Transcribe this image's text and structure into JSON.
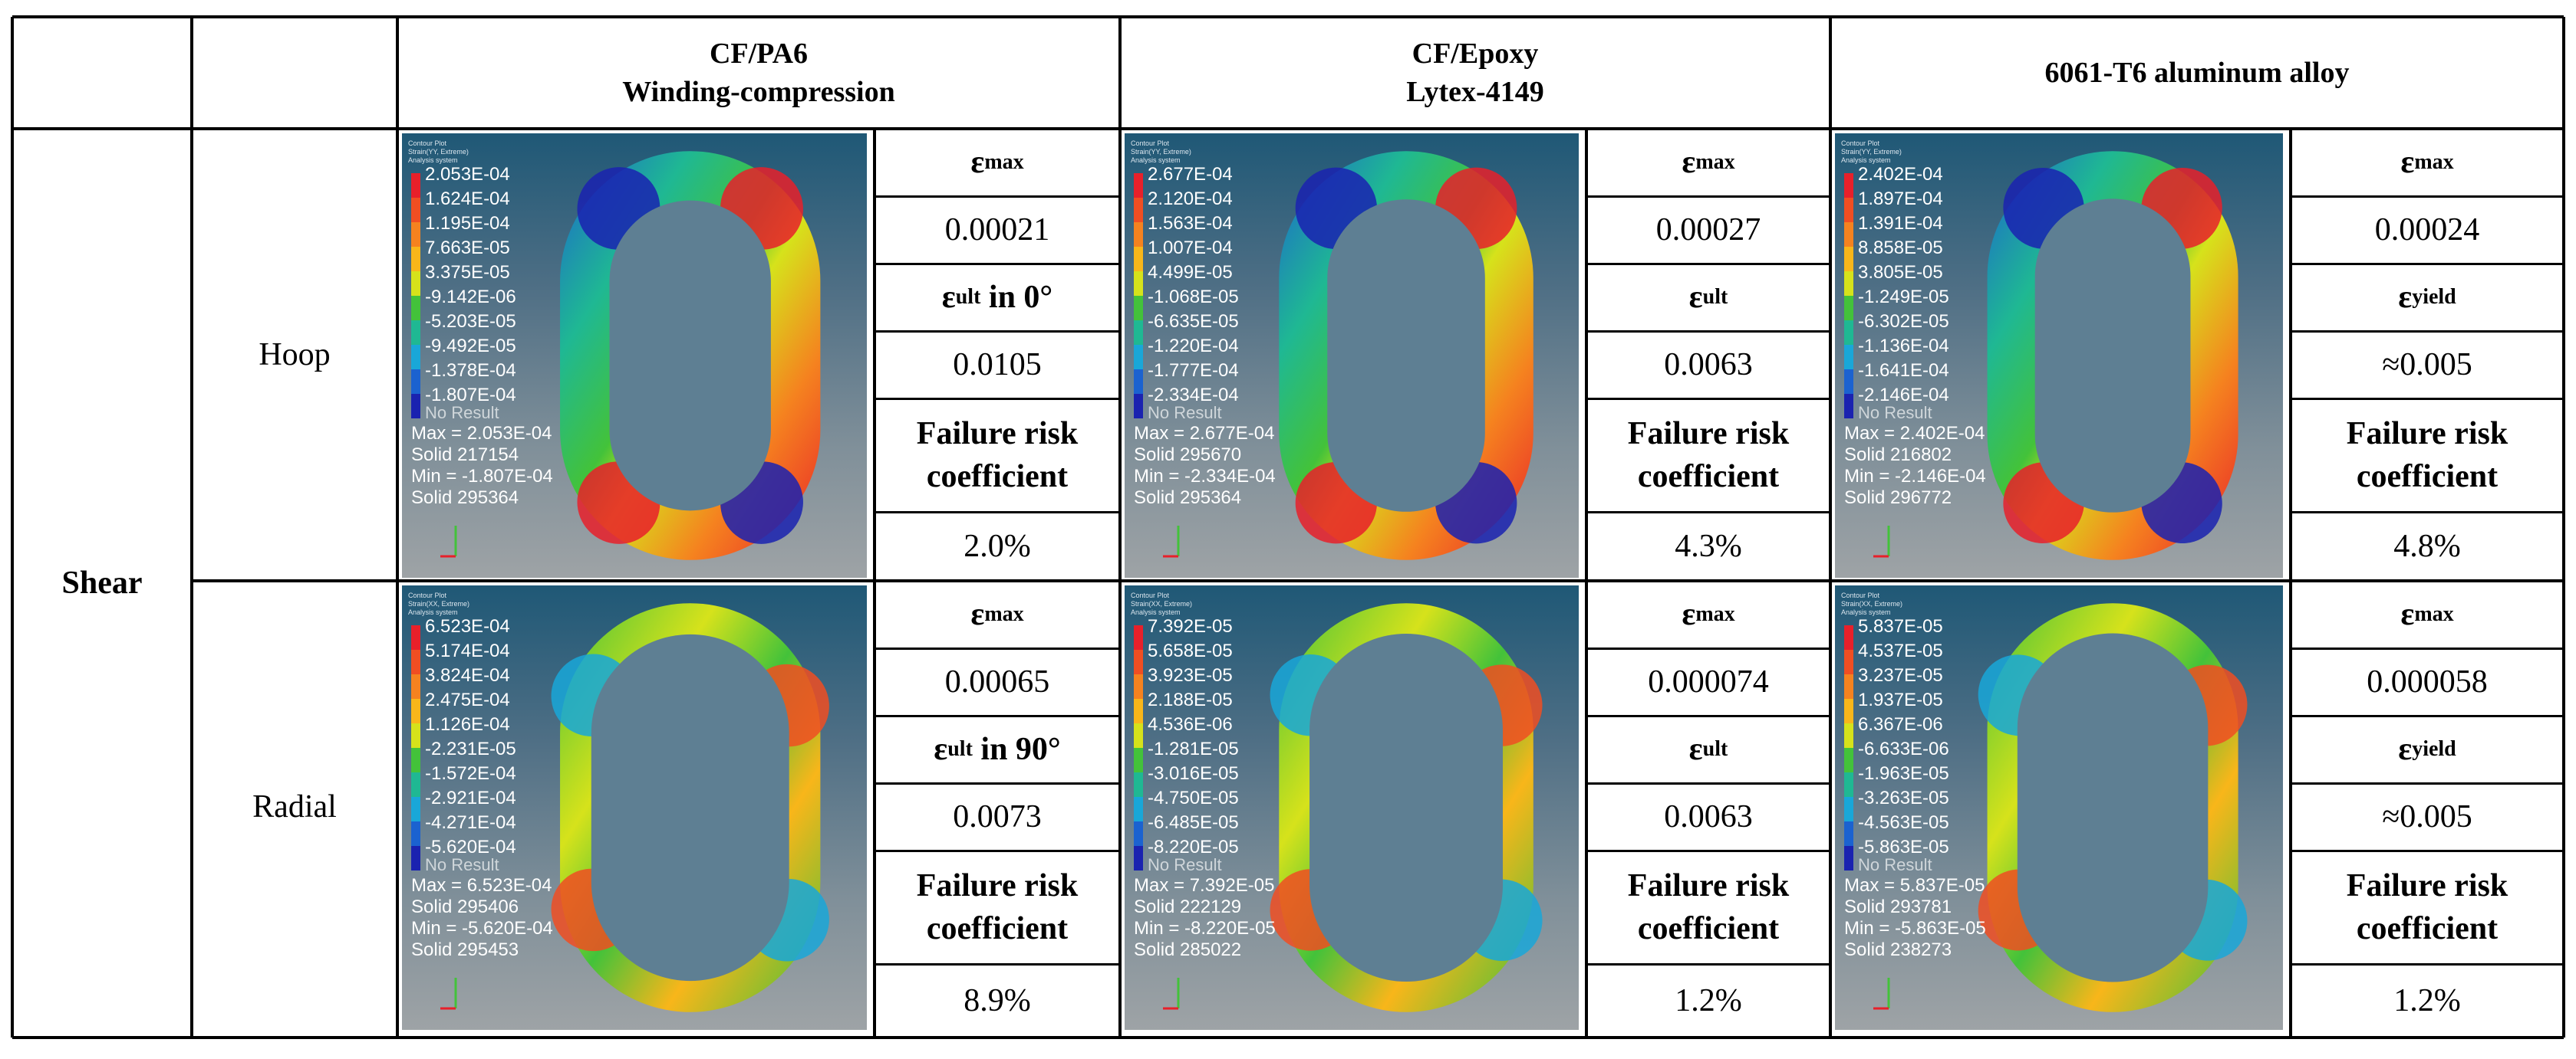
{
  "headers": {
    "material1": [
      "CF/PA6",
      "Winding-compression"
    ],
    "material2": [
      "CF/Epoxy",
      "Lytex-4149"
    ],
    "material3": [
      "6061-T6 aluminum alloy"
    ]
  },
  "group_label": "Shear",
  "rows": [
    {
      "label": "Hoop",
      "materials": [
        {
          "strain_label": "ε",
          "strain_sub": "max",
          "strain_value": "0.00021",
          "limit_label": "ε",
          "limit_sub": "ult",
          "limit_suffix": " in 0°",
          "limit_value": "0.0105",
          "risk_label": [
            "Failure risk",
            "coefficient"
          ],
          "risk_value": "2.0%",
          "plot": {
            "title": [
              "Contour Plot",
              "Strain(YY, Extreme)",
              "Analysis system"
            ],
            "ticks": [
              "2.053E-04",
              "1.624E-04",
              "1.195E-04",
              "7.663E-05",
              "3.375E-05",
              "-9.142E-06",
              "-5.203E-05",
              "-9.492E-05",
              "-1.378E-04",
              "-1.807E-04"
            ],
            "no_result": "No Result",
            "stats": [
              "Max = 2.053E-04",
              "Solid 217154",
              "Min = -1.807E-04",
              "Solid 295364"
            ]
          }
        },
        {
          "strain_label": "ε",
          "strain_sub": "max",
          "strain_value": "0.00027",
          "limit_label": "ε",
          "limit_sub": "ult",
          "limit_suffix": "",
          "limit_value": "0.0063",
          "risk_label": [
            "Failure risk",
            "coefficient"
          ],
          "risk_value": "4.3%",
          "plot": {
            "title": [
              "Contour Plot",
              "Strain(YY, Extreme)",
              "Analysis system"
            ],
            "ticks": [
              "2.677E-04",
              "2.120E-04",
              "1.563E-04",
              "1.007E-04",
              "4.499E-05",
              "-1.068E-05",
              "-6.635E-05",
              "-1.220E-04",
              "-1.777E-04",
              "-2.334E-04"
            ],
            "no_result": "No Result",
            "stats": [
              "Max = 2.677E-04",
              "Solid 295670",
              "Min = -2.334E-04",
              "Solid 295364"
            ]
          }
        },
        {
          "strain_label": "ε",
          "strain_sub": "max",
          "strain_value": "0.00024",
          "limit_label": "ε",
          "limit_sub": "yield",
          "limit_suffix": "",
          "limit_value": "≈0.005",
          "risk_label": [
            "Failure risk",
            "coefficient"
          ],
          "risk_value": "4.8%",
          "plot": {
            "title": [
              "Contour Plot",
              "Strain(YY, Extreme)",
              "Analysis system"
            ],
            "ticks": [
              "2.402E-04",
              "1.897E-04",
              "1.391E-04",
              "8.858E-05",
              "3.805E-05",
              "-1.249E-05",
              "-6.302E-05",
              "-1.136E-04",
              "-1.641E-04",
              "-2.146E-04"
            ],
            "no_result": "No Result",
            "stats": [
              "Max = 2.402E-04",
              "Solid 216802",
              "Min = -2.146E-04",
              "Solid 296772"
            ]
          }
        }
      ]
    },
    {
      "label": "Radial",
      "materials": [
        {
          "strain_label": "ε",
          "strain_sub": "max",
          "strain_value": "0.00065",
          "limit_label": "ε",
          "limit_sub": "ult",
          "limit_suffix": " in 90°",
          "limit_value": "0.0073",
          "risk_label": [
            "Failure risk",
            "coefficient"
          ],
          "risk_value": "8.9%",
          "plot": {
            "title": [
              "Contour Plot",
              "Strain(XX, Extreme)",
              "Analysis system"
            ],
            "ticks": [
              "6.523E-04",
              "5.174E-04",
              "3.824E-04",
              "2.475E-04",
              "1.126E-04",
              "-2.231E-05",
              "-1.572E-04",
              "-2.921E-04",
              "-4.271E-04",
              "-5.620E-04"
            ],
            "no_result": "No Result",
            "stats": [
              "Max = 6.523E-04",
              "Solid 295406",
              "Min = -5.620E-04",
              "Solid 295453"
            ]
          }
        },
        {
          "strain_label": "ε",
          "strain_sub": "max",
          "strain_value": "0.000074",
          "limit_label": "ε",
          "limit_sub": "ult",
          "limit_suffix": "",
          "limit_value": "0.0063",
          "risk_label": [
            "Failure risk",
            "coefficient"
          ],
          "risk_value": "1.2%",
          "plot": {
            "title": [
              "Contour Plot",
              "Strain(XX, Extreme)",
              "Analysis system"
            ],
            "ticks": [
              "7.392E-05",
              "5.658E-05",
              "3.923E-05",
              "2.188E-05",
              "4.536E-06",
              "-1.281E-05",
              "-3.016E-05",
              "-4.750E-05",
              "-6.485E-05",
              "-8.220E-05"
            ],
            "no_result": "No Result",
            "stats": [
              "Max = 7.392E-05",
              "Solid 222129",
              "Min = -8.220E-05",
              "Solid 285022"
            ]
          }
        },
        {
          "strain_label": "ε",
          "strain_sub": "max",
          "strain_value": "0.000058",
          "limit_label": "ε",
          "limit_sub": "yield",
          "limit_suffix": "",
          "limit_value": "≈0.005",
          "risk_label": [
            "Failure risk",
            "coefficient"
          ],
          "risk_value": "1.2%",
          "plot": {
            "title": [
              "Contour Plot",
              "Strain(XX, Extreme)",
              "Analysis system"
            ],
            "ticks": [
              "5.837E-05",
              "4.537E-05",
              "3.237E-05",
              "1.937E-05",
              "6.367E-06",
              "-6.633E-06",
              "-1.963E-05",
              "-3.263E-05",
              "-4.563E-05",
              "-5.863E-05"
            ],
            "no_result": "No Result",
            "stats": [
              "Max = 5.837E-05",
              "Solid 293781",
              "Min = -5.863E-05",
              "Solid 238273"
            ]
          }
        }
      ]
    }
  ],
  "colors": {
    "scale": [
      "#e8202a",
      "#f04e22",
      "#f5821f",
      "#f8b61a",
      "#d6e21b",
      "#43c23a",
      "#1fb893",
      "#19a7d8",
      "#1b62d0",
      "#1a22b0"
    ],
    "background_top": "#1f5876",
    "background_bottom": "#9ea3a6"
  }
}
